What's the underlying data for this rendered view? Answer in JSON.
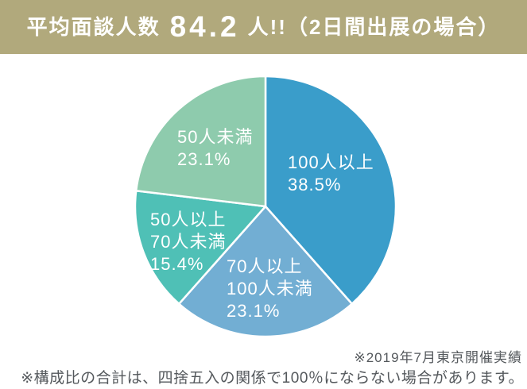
{
  "banner": {
    "prefix": "平均面談人数",
    "number": "84.2",
    "suffix": "人!!（2日間出展の場合）",
    "bg_color": "#b1a97c",
    "text_color": "#ffffff"
  },
  "chart_data": {
    "type": "pie",
    "title": "平均面談人数 84.2人!!（2日間出展の場合）",
    "start_angle_deg": 0,
    "direction": "clockwise",
    "legend_position": "none",
    "label_text_color": "#ffffff",
    "divider_color": "#ffffff",
    "slices": [
      {
        "label": "100人以上",
        "value": 38.5,
        "color": "#3a9dca",
        "lines": [
          "100人以上",
          "38.5%"
        ]
      },
      {
        "label": "70人以上100人未満",
        "value": 23.1,
        "color": "#72aed3",
        "lines": [
          "70人以上",
          "100人未満",
          "23.1%"
        ]
      },
      {
        "label": "50人以上70人未満",
        "value": 15.4,
        "color": "#4fc0b6",
        "lines": [
          "50人以上",
          "70人未満",
          "15.4%"
        ]
      },
      {
        "label": "50人未満",
        "value": 23.1,
        "color": "#8ecbad",
        "lines": [
          "50人未満",
          "23.1%"
        ]
      }
    ]
  },
  "footnotes": {
    "note1": "※2019年7月東京開催実績",
    "note2": "※構成比の合計は、四捨五入の関係で100％にならない場合があります。"
  }
}
